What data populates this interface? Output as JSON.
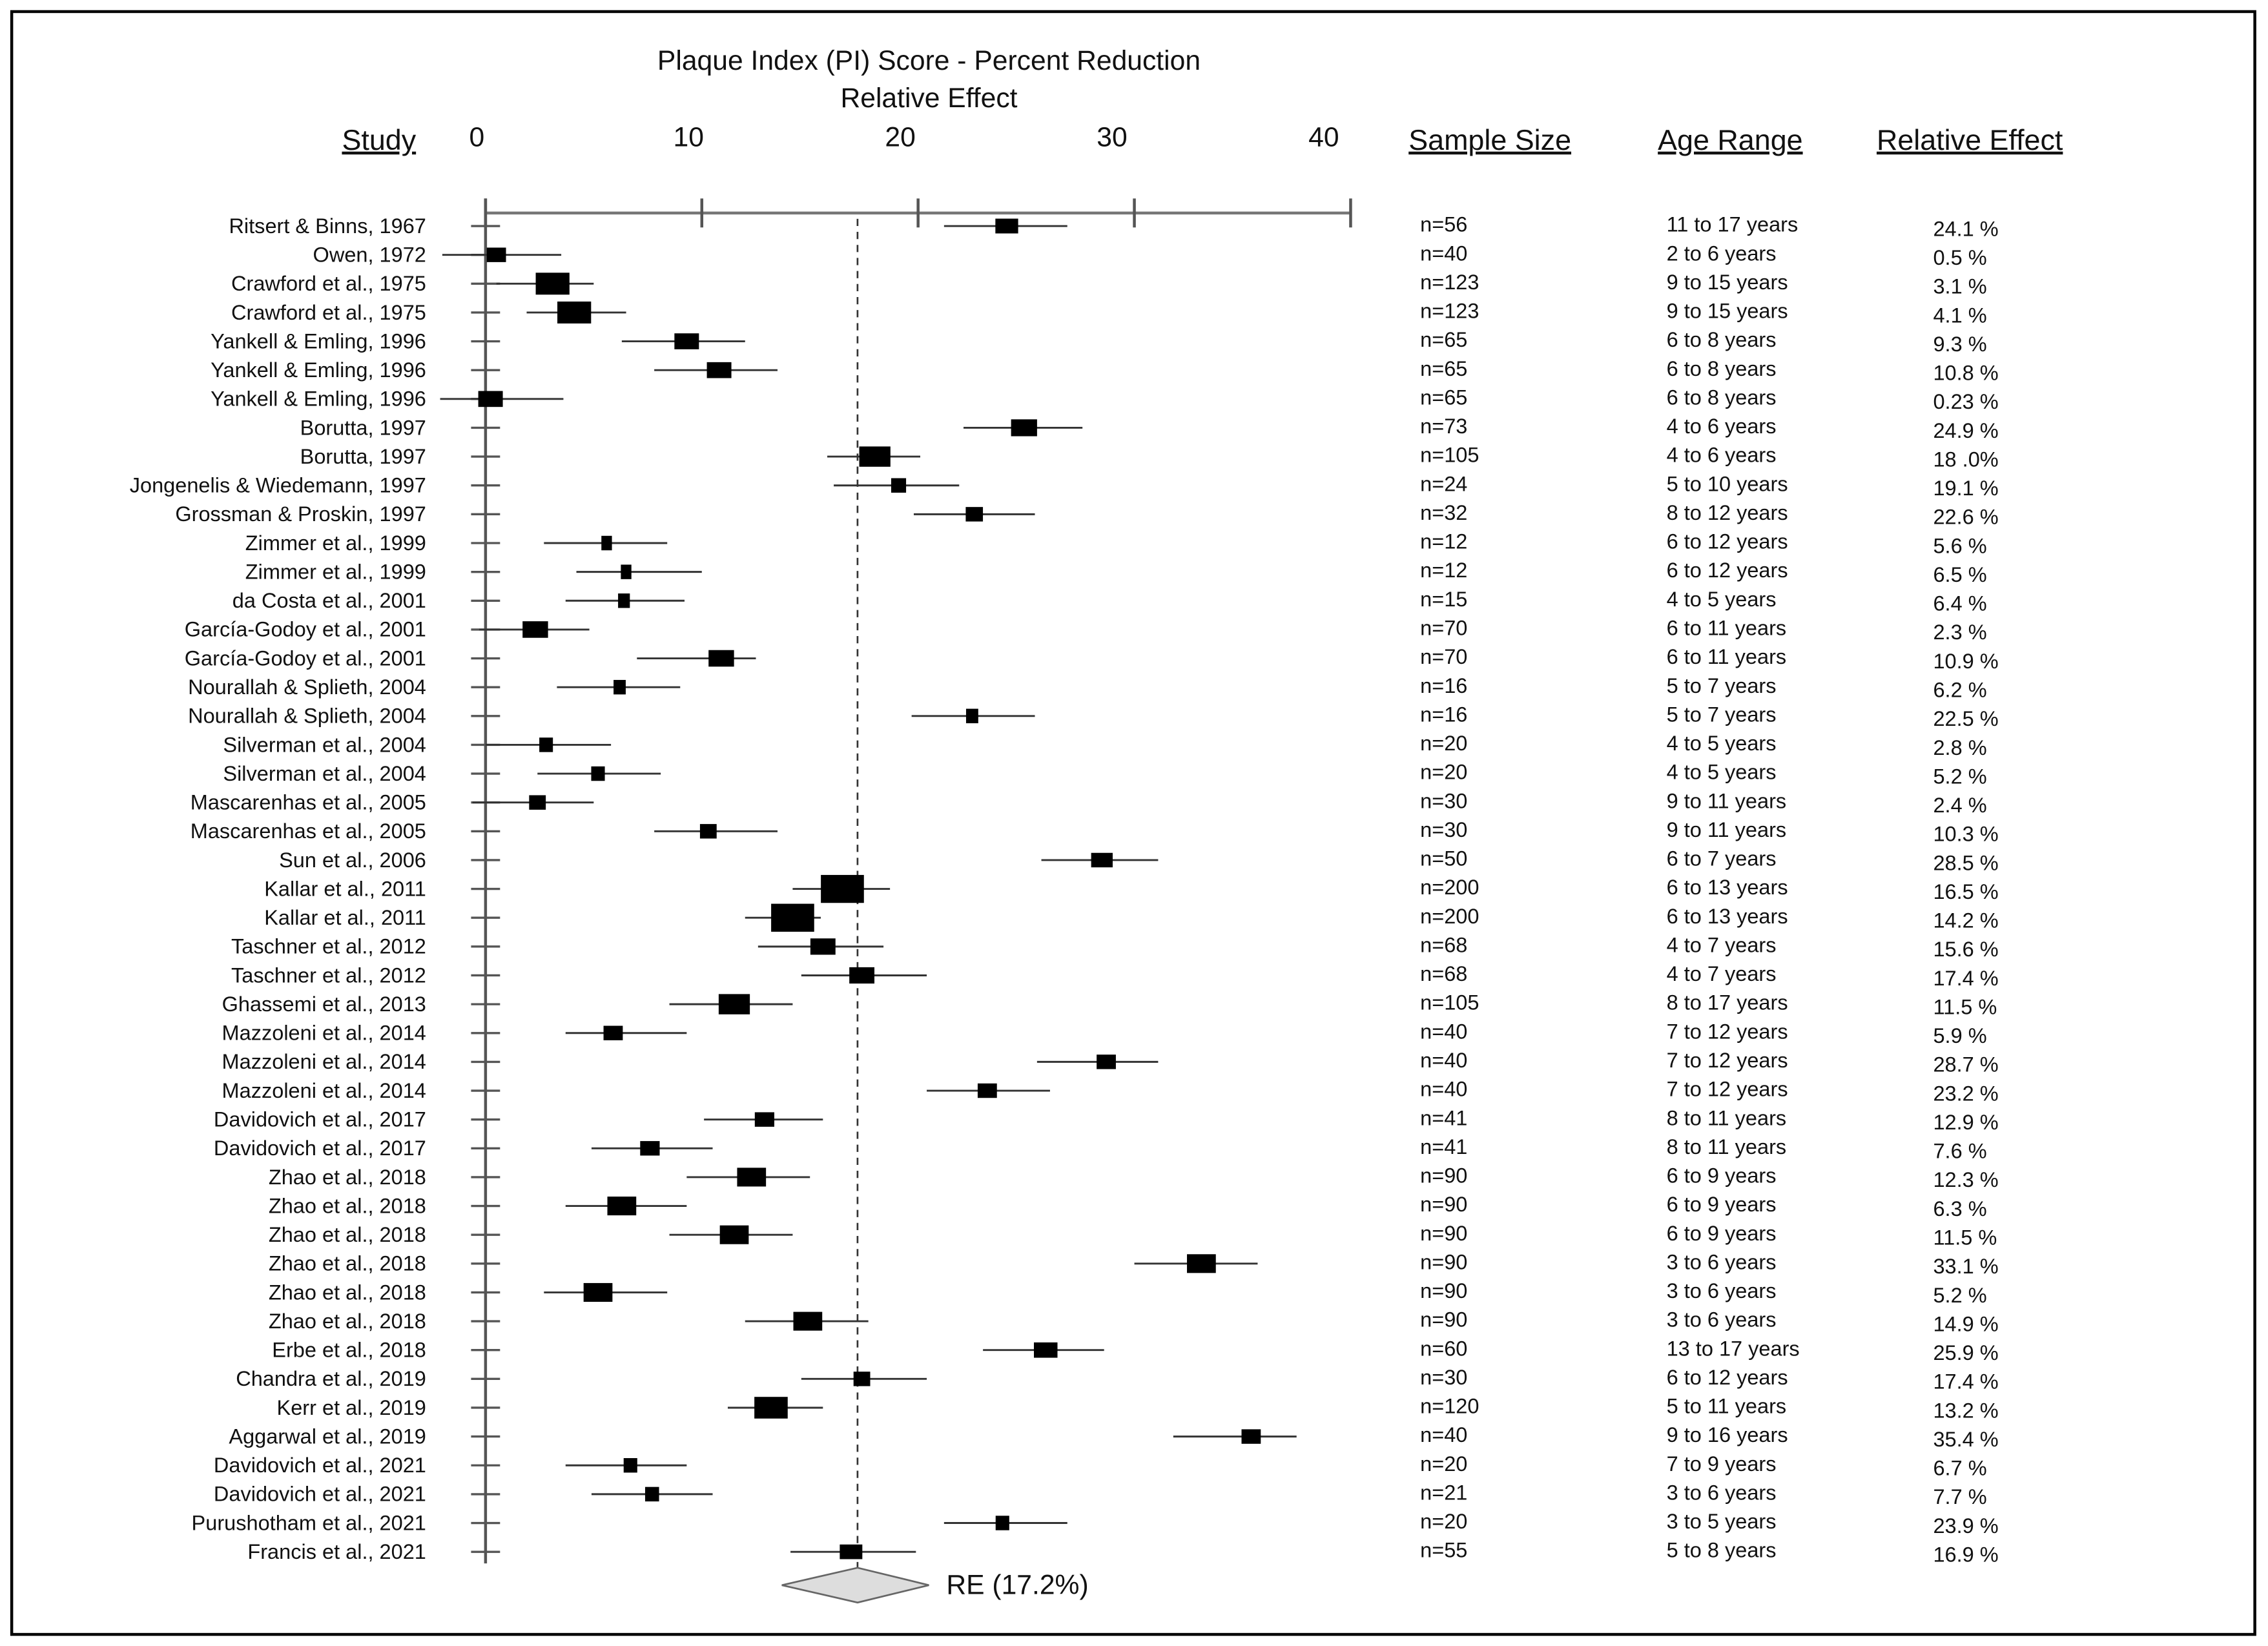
{
  "chart_data": {
    "type": "forest",
    "title": "Plaque Index (PI) Score - Percent Reduction",
    "subtitle": "Relative Effect",
    "category_label": "Study",
    "categories": [
      "Ritsert & Binns, 1967",
      "Owen, 1972",
      "Crawford et al., 1975",
      "Crawford et al., 1975",
      "Yankell & Emling, 1996",
      "Yankell & Emling, 1996",
      "Yankell & Emling, 1996",
      "Borutta, 1997",
      "Borutta, 1997",
      "Jongenelis & Wiedemann, 1997",
      "Grossman & Proskin, 1997",
      "Zimmer et al., 1999",
      "Zimmer et al., 1999",
      "da Costa et al., 2001",
      "García-Godoy et al., 2001",
      "García-Godoy et al., 2001",
      "Nourallah & Splieth, 2004",
      "Nourallah & Splieth, 2004",
      "Silverman et al., 2004",
      "Silverman et al., 2004",
      "Mascarenhas et al., 2005",
      "Mascarenhas et al., 2005",
      "Sun et al., 2006",
      "Kallar et al., 2011",
      "Kallar et al., 2011",
      "Taschner et al., 2012",
      "Taschner et al., 2012",
      "Ghassemi et al., 2013",
      "Mazzoleni et al., 2014",
      "Mazzoleni et al., 2014",
      "Mazzoleni et al., 2014",
      "Davidovich et al., 2017",
      "Davidovich et al., 2017",
      "Zhao et al., 2018",
      "Zhao et al., 2018",
      "Zhao et al., 2018",
      "Zhao et al., 2018",
      "Zhao et al., 2018",
      "Zhao et al., 2018",
      "Erbe et al., 2018",
      "Chandra et al., 2019",
      "Kerr et al., 2019",
      "Aggarwal et al., 2019",
      "Davidovich et al., 2021",
      "Davidovich et al., 2021",
      "Purushotham et al., 2021",
      "Francis et al., 2021"
    ],
    "series": [
      {
        "name": "Relative Effect",
        "color": "#000000",
        "values": [
          24.1,
          0.5,
          3.1,
          4.1,
          9.3,
          10.8,
          0.23,
          24.9,
          18.0,
          19.1,
          22.6,
          5.6,
          6.5,
          6.4,
          2.3,
          10.9,
          6.2,
          22.5,
          2.8,
          5.2,
          2.4,
          10.3,
          28.5,
          16.5,
          14.2,
          15.6,
          17.4,
          11.5,
          5.9,
          28.7,
          23.2,
          12.9,
          7.6,
          12.3,
          6.3,
          11.5,
          33.1,
          5.2,
          14.9,
          25.9,
          17.4,
          13.2,
          35.4,
          6.7,
          7.7,
          23.9,
          16.9
        ],
        "value_labels": [
          "24.1 %",
          "0.5 %",
          "3.1 %",
          "4.1 %",
          "9.3 %",
          "10.8 %",
          "0.23 %",
          "24.9 %",
          "18 .0%",
          "19.1 %",
          "22.6 %",
          "5.6 %",
          "6.5 %",
          "6.4 %",
          "2.3 %",
          "10.9 %",
          "6.2 %",
          "22.5 %",
          "2.8 %",
          "5.2 %",
          "2.4 %",
          "10.3 %",
          "28.5 %",
          "16.5 %",
          "14.2 %",
          "15.6 %",
          "17.4 %",
          "11.5 %",
          "5.9 %",
          "28.7 %",
          "23.2 %",
          "12.9 %",
          "7.6 %",
          "12.3 %",
          "6.3 %",
          "11.5 %",
          "33.1 %",
          "5.2 %",
          "14.9 %",
          "25.9 %",
          "17.4 %",
          "13.2 %",
          "35.4 %",
          "6.7 %",
          "7.7 %",
          "23.9 %",
          "16.9 %"
        ],
        "lower": [
          21.2,
          -2.0,
          0.5,
          1.9,
          6.3,
          7.8,
          -2.1,
          22.1,
          15.8,
          16.1,
          19.8,
          2.7,
          4.2,
          3.7,
          -0.3,
          7.0,
          3.3,
          19.7,
          0.0,
          2.4,
          -0.6,
          7.8,
          25.7,
          14.2,
          12.0,
          12.6,
          14.6,
          8.5,
          3.7,
          25.5,
          20.4,
          10.1,
          4.9,
          9.3,
          3.7,
          8.5,
          30.0,
          2.7,
          12.0,
          23.0,
          14.6,
          11.2,
          31.8,
          3.7,
          4.9,
          21.2,
          14.1
        ],
        "upper": [
          26.9,
          3.5,
          5.0,
          6.5,
          12.0,
          13.5,
          3.6,
          27.6,
          20.1,
          21.9,
          25.4,
          8.4,
          10.0,
          9.2,
          4.8,
          12.5,
          9.0,
          25.4,
          5.8,
          8.1,
          5.0,
          13.5,
          31.1,
          18.7,
          15.5,
          18.4,
          20.4,
          14.2,
          9.3,
          31.1,
          26.1,
          15.6,
          10.5,
          15.0,
          9.3,
          14.2,
          35.7,
          8.4,
          17.7,
          28.6,
          20.4,
          15.6,
          37.5,
          9.3,
          10.5,
          26.9,
          19.9
        ]
      }
    ],
    "sample_size": {
      "name": "Sample Size",
      "values": [
        56,
        40,
        123,
        123,
        65,
        65,
        65,
        73,
        105,
        24,
        32,
        12,
        12,
        15,
        70,
        70,
        16,
        16,
        20,
        20,
        30,
        30,
        50,
        200,
        200,
        68,
        68,
        105,
        40,
        40,
        40,
        41,
        41,
        90,
        90,
        90,
        90,
        90,
        90,
        60,
        30,
        120,
        40,
        20,
        21,
        20,
        55
      ],
      "value_labels": [
        "n=56",
        "n=40",
        "n=123",
        "n=123",
        "n=65",
        "n=65",
        "n=65",
        "n=73",
        "n=105",
        "n=24",
        "n=32",
        "n=12",
        "n=12",
        "n=15",
        "n=70",
        "n=70",
        "n=16",
        "n=16",
        "n=20",
        "n=20",
        "n=30",
        "n=30",
        "n=50",
        "n=200",
        "n=200",
        "n=68",
        "n=68",
        "n=105",
        "n=40",
        "n=40",
        "n=40",
        "n=41",
        "n=41",
        "n=90",
        "n=90",
        "n=90",
        "n=90",
        "n=90",
        "n=90",
        "n=60",
        "n=30",
        "n=120",
        "n=40",
        "n=20",
        "n=21",
        "n=20",
        "n=55"
      ]
    },
    "age_range": {
      "name": "Age Range",
      "values": [
        "11 to 17 years",
        "2 to 6 years",
        "9 to 15 years",
        "9 to 15 years",
        "6 to 8 years",
        "6 to 8 years",
        "6 to 8 years",
        "4 to 6 years",
        "4 to 6 years",
        "5 to 10 years",
        "8 to 12 years",
        "6 to 12 years",
        "6 to 12 years",
        "4 to 5 years",
        "6 to 11 years",
        "6 to 11 years",
        "5 to 7 years",
        "5 to 7 years",
        "4 to 5 years",
        "4 to 5 years",
        "9 to 11 years",
        "9 to 11 years",
        "6 to 7 years",
        "6 to 13 years",
        "6 to 13 years",
        "4 to 7 years",
        "4 to 7 years",
        "8 to 17 years",
        "7 to 12 years",
        "7 to 12 years",
        "7 to 12 years",
        "8 to 11 years",
        "8 to 11 years",
        "6 to 9 years",
        "6 to 9 years",
        "6 to 9 years",
        "3 to 6 years",
        "3 to 6 years",
        "3 to 6 years",
        "13 to 17 years",
        "6 to 12 years",
        "5 to 11 years",
        "9 to 16 years",
        "7 to 9 years",
        "3 to 6 years",
        "3 to 5 years",
        "5 to 8 years"
      ]
    },
    "summary": {
      "label": "RE (17.2%)",
      "value": 17.2,
      "lower": 13.7,
      "upper": 20.5,
      "color": "#dddddd"
    },
    "xlim": [
      0,
      40
    ],
    "xticks": [
      0,
      10,
      20,
      30,
      40
    ]
  }
}
